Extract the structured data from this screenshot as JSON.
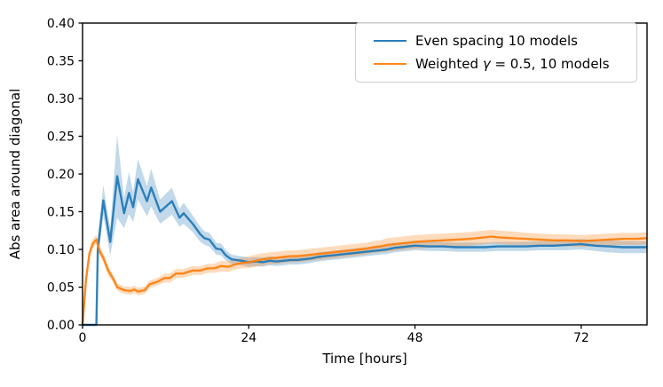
{
  "figure": {
    "xlabel": "Time [hours]",
    "ylabel": "Abs area around diagonal",
    "background": "#ffffff",
    "spine_color": "#000000"
  },
  "legend": {
    "items": [
      {
        "label": "Even spacing 10 models",
        "color": "#1f77b4"
      },
      {
        "label_parts": {
          "prefix": "Weighted ",
          "gamma": "γ",
          "suffix": " = 0.5, 10 models"
        },
        "label": "Weighted γ = 0.5, 10 models",
        "color": "#ff7f0e"
      }
    ]
  },
  "chart_data": {
    "type": "line",
    "title": "",
    "xlabel": "Time [hours]",
    "ylabel": "Abs area around diagonal",
    "xlim": [
      0,
      81.5
    ],
    "ylim": [
      0,
      0.4
    ],
    "grid": false,
    "legend_position": "upper right",
    "xticks": {
      "values": [
        0,
        24,
        48,
        72
      ],
      "labels": [
        "0",
        "24",
        "48",
        "72"
      ]
    },
    "yticks": {
      "values": [
        0.0,
        0.05,
        0.1,
        0.15,
        0.2,
        0.25,
        0.3,
        0.35,
        0.4
      ],
      "labels": [
        "0.00",
        "0.05",
        "0.10",
        "0.15",
        "0.20",
        "0.25",
        "0.30",
        "0.35",
        "0.40"
      ]
    },
    "series": [
      {
        "name": "Even spacing 10 models",
        "color": "#1f77b4",
        "band_alpha": 0.28,
        "x": [
          0,
          1,
          2,
          2.2,
          3,
          4,
          5,
          6,
          6.7,
          7.3,
          8,
          9.3,
          9.9,
          11.2,
          12.9,
          14,
          14.6,
          15.9,
          17,
          17.6,
          18.3,
          19.3,
          20,
          20.7,
          21.5,
          22.2,
          23,
          24,
          25,
          26,
          27,
          28,
          29,
          30,
          31,
          32,
          33,
          34,
          35,
          36,
          37,
          38,
          39,
          40,
          41,
          42,
          43,
          44,
          45,
          46,
          47,
          48,
          50,
          52,
          54,
          56,
          58,
          60,
          62,
          64,
          66,
          68,
          70,
          72,
          74,
          76,
          78,
          80,
          81.5
        ],
        "y": [
          0,
          0,
          0,
          0.1,
          0.165,
          0.11,
          0.197,
          0.148,
          0.175,
          0.156,
          0.193,
          0.164,
          0.182,
          0.15,
          0.164,
          0.142,
          0.148,
          0.134,
          0.12,
          0.115,
          0.113,
          0.101,
          0.1,
          0.092,
          0.087,
          0.086,
          0.085,
          0.083,
          0.084,
          0.083,
          0.085,
          0.084,
          0.085,
          0.086,
          0.086,
          0.087,
          0.088,
          0.09,
          0.091,
          0.092,
          0.093,
          0.094,
          0.095,
          0.096,
          0.097,
          0.098,
          0.099,
          0.1,
          0.102,
          0.103,
          0.104,
          0.105,
          0.104,
          0.104,
          0.103,
          0.103,
          0.103,
          0.104,
          0.104,
          0.104,
          0.105,
          0.105,
          0.106,
          0.107,
          0.105,
          0.104,
          0.103,
          0.103,
          0.103
        ],
        "band": [
          0.001,
          0.001,
          0.001,
          0.015,
          0.02,
          0.018,
          0.055,
          0.02,
          0.028,
          0.02,
          0.027,
          0.02,
          0.025,
          0.016,
          0.018,
          0.012,
          0.014,
          0.011,
          0.01,
          0.009,
          0.009,
          0.008,
          0.008,
          0.007,
          0.006,
          0.006,
          0.006,
          0.006,
          0.006,
          0.006,
          0.006,
          0.006,
          0.006,
          0.006,
          0.006,
          0.006,
          0.006,
          0.006,
          0.006,
          0.006,
          0.006,
          0.006,
          0.006,
          0.006,
          0.006,
          0.006,
          0.006,
          0.006,
          0.006,
          0.006,
          0.006,
          0.006,
          0.006,
          0.006,
          0.006,
          0.006,
          0.006,
          0.006,
          0.006,
          0.006,
          0.006,
          0.006,
          0.007,
          0.007,
          0.007,
          0.008,
          0.008,
          0.008,
          0.008
        ]
      },
      {
        "name": "Weighted γ = 0.5, 10 models",
        "color": "#ff7f0e",
        "band_alpha": 0.28,
        "x": [
          0,
          0.5,
          1,
          1.5,
          2,
          2.5,
          3,
          3.7,
          4.5,
          5,
          6,
          7,
          7.5,
          8,
          9,
          9.7,
          10.5,
          11,
          11.8,
          12.6,
          13.5,
          14.5,
          15.9,
          17,
          18,
          19,
          20,
          21,
          22,
          23,
          24,
          25,
          26,
          27,
          28,
          29,
          30,
          31,
          32,
          33,
          34,
          35,
          36,
          37,
          38,
          39,
          40,
          41,
          42,
          43,
          44,
          45,
          46,
          47,
          48,
          50,
          52,
          54,
          56,
          58,
          59,
          60,
          62,
          64,
          66,
          68,
          70,
          72,
          74,
          76,
          78,
          80,
          81.5
        ],
        "y": [
          0,
          0.06,
          0.095,
          0.108,
          0.113,
          0.097,
          0.089,
          0.072,
          0.06,
          0.05,
          0.046,
          0.045,
          0.047,
          0.044,
          0.046,
          0.054,
          0.056,
          0.058,
          0.062,
          0.062,
          0.068,
          0.068,
          0.072,
          0.072,
          0.075,
          0.075,
          0.078,
          0.077,
          0.08,
          0.082,
          0.083,
          0.085,
          0.087,
          0.088,
          0.089,
          0.09,
          0.091,
          0.091,
          0.092,
          0.093,
          0.094,
          0.095,
          0.096,
          0.097,
          0.098,
          0.099,
          0.1,
          0.101,
          0.103,
          0.104,
          0.106,
          0.107,
          0.108,
          0.109,
          0.11,
          0.111,
          0.112,
          0.113,
          0.114,
          0.116,
          0.117,
          0.116,
          0.115,
          0.114,
          0.113,
          0.112,
          0.112,
          0.111,
          0.112,
          0.113,
          0.114,
          0.114,
          0.115
        ],
        "band": [
          0.003,
          0.005,
          0.006,
          0.006,
          0.006,
          0.006,
          0.006,
          0.006,
          0.005,
          0.005,
          0.005,
          0.005,
          0.005,
          0.005,
          0.005,
          0.005,
          0.005,
          0.005,
          0.006,
          0.006,
          0.006,
          0.006,
          0.006,
          0.006,
          0.006,
          0.006,
          0.007,
          0.007,
          0.007,
          0.007,
          0.008,
          0.008,
          0.008,
          0.008,
          0.008,
          0.008,
          0.008,
          0.008,
          0.008,
          0.008,
          0.008,
          0.008,
          0.008,
          0.008,
          0.008,
          0.008,
          0.008,
          0.008,
          0.008,
          0.008,
          0.009,
          0.009,
          0.009,
          0.009,
          0.009,
          0.009,
          0.009,
          0.009,
          0.009,
          0.009,
          0.009,
          0.009,
          0.009,
          0.008,
          0.008,
          0.008,
          0.008,
          0.008,
          0.008,
          0.008,
          0.008,
          0.008,
          0.008
        ]
      }
    ]
  }
}
